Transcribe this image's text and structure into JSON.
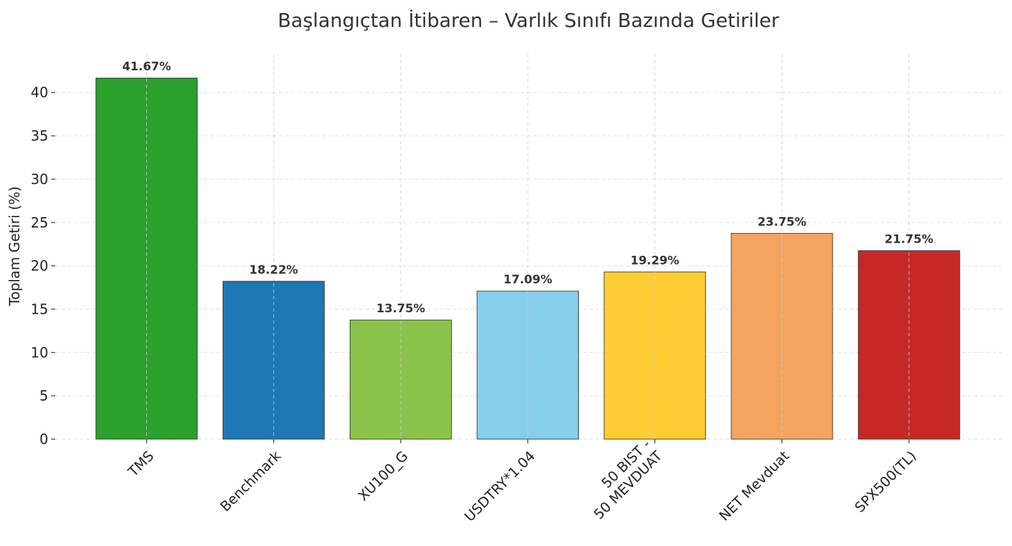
{
  "chart_data": {
    "type": "bar",
    "title": "Başlangıçtan İtibaren – Varlık Sınıfı Bazında Getiriler",
    "ylabel": "Toplam Getiri (%)",
    "xlabel": "",
    "categories": [
      "TMS",
      "Benchmark",
      "XU100_G",
      "USDTRY*1.04",
      "50 BIST -\n50 MEVDUAT",
      "NET Mevduat",
      "SPX500(TL)"
    ],
    "values": [
      41.67,
      18.22,
      13.75,
      17.09,
      19.29,
      23.75,
      21.75
    ],
    "value_labels": [
      "41.67%",
      "18.22%",
      "13.75%",
      "17.09%",
      "19.29%",
      "23.75%",
      "21.75%"
    ],
    "colors": [
      "#2ca02c",
      "#1f77b4",
      "#8bc34a",
      "#87ceeb",
      "#ffcc33",
      "#f4a460",
      "#c62828"
    ],
    "yticks": [
      0,
      5,
      10,
      15,
      20,
      25,
      30,
      35,
      40
    ],
    "ylim": [
      0,
      44.5
    ],
    "grid": true
  }
}
